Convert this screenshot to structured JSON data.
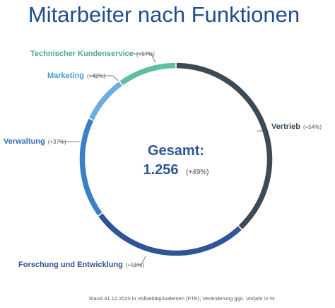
{
  "chart_data": {
    "type": "pie",
    "title": "Mitarbeiter nach Funktionen",
    "center": {
      "label": "Gesamt:",
      "value": "1.256",
      "change": "(+49%)"
    },
    "slices": [
      {
        "name": "Vertrieb",
        "change": "(+54%)",
        "share": 0.38,
        "color": "#3b4a55"
      },
      {
        "name": "Forschung und Entwicklung",
        "change": "(+51%)",
        "share": 0.27,
        "color": "#2f5597"
      },
      {
        "name": "Verwaltung",
        "change": "(+37%)",
        "share": 0.17,
        "color": "#3b7fc4"
      },
      {
        "name": "Marketing",
        "change": "(+42%)",
        "share": 0.08,
        "color": "#6aaee0"
      },
      {
        "name": "Technischer Kundenservice",
        "change": "(+57%)",
        "share": 0.1,
        "color": "#5fbf9f"
      }
    ],
    "label_colors": {
      "Vertrieb": "#3b4a55",
      "Forschung und Entwicklung": "#2f5597",
      "Verwaltung": "#2f6fb3",
      "Marketing": "#4a9ad6",
      "Technischer Kundenservice": "#4fa88a"
    },
    "footnote": "Stand 31.12.2020 in Vollzeitäquivalenten (FTE); Veränderung ggü. Vorjahr in %"
  }
}
